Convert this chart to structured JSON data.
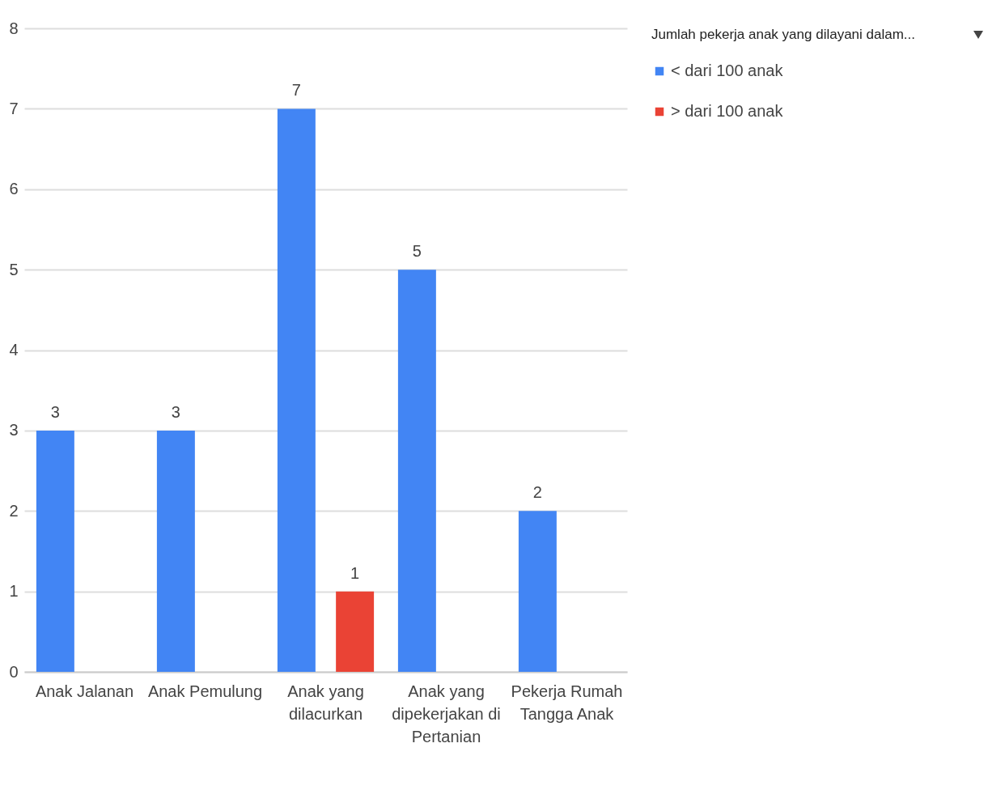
{
  "chart_data": {
    "type": "bar",
    "categories": [
      "Anak Jalanan",
      "Anak Pemulung",
      "Anak yang dilacurkan",
      "Anak yang dipekerjakan di Pertanian",
      "Pekerja Rumah Tangga Anak"
    ],
    "series": [
      {
        "name": "< dari 100 anak",
        "color": "#4285f4",
        "values": [
          3,
          3,
          7,
          5,
          2
        ]
      },
      {
        "name": "> dari 100 anak",
        "color": "#ea4335",
        "values": [
          null,
          null,
          1,
          null,
          null
        ]
      }
    ],
    "ylim": [
      0,
      8
    ],
    "yticks": [
      0,
      1,
      2,
      3,
      4,
      5,
      6,
      7,
      8
    ],
    "grid": "y",
    "legend": "right",
    "legend_title": "Jumlah pekerja anak yang dilayani dalam...",
    "data_labels": true
  }
}
